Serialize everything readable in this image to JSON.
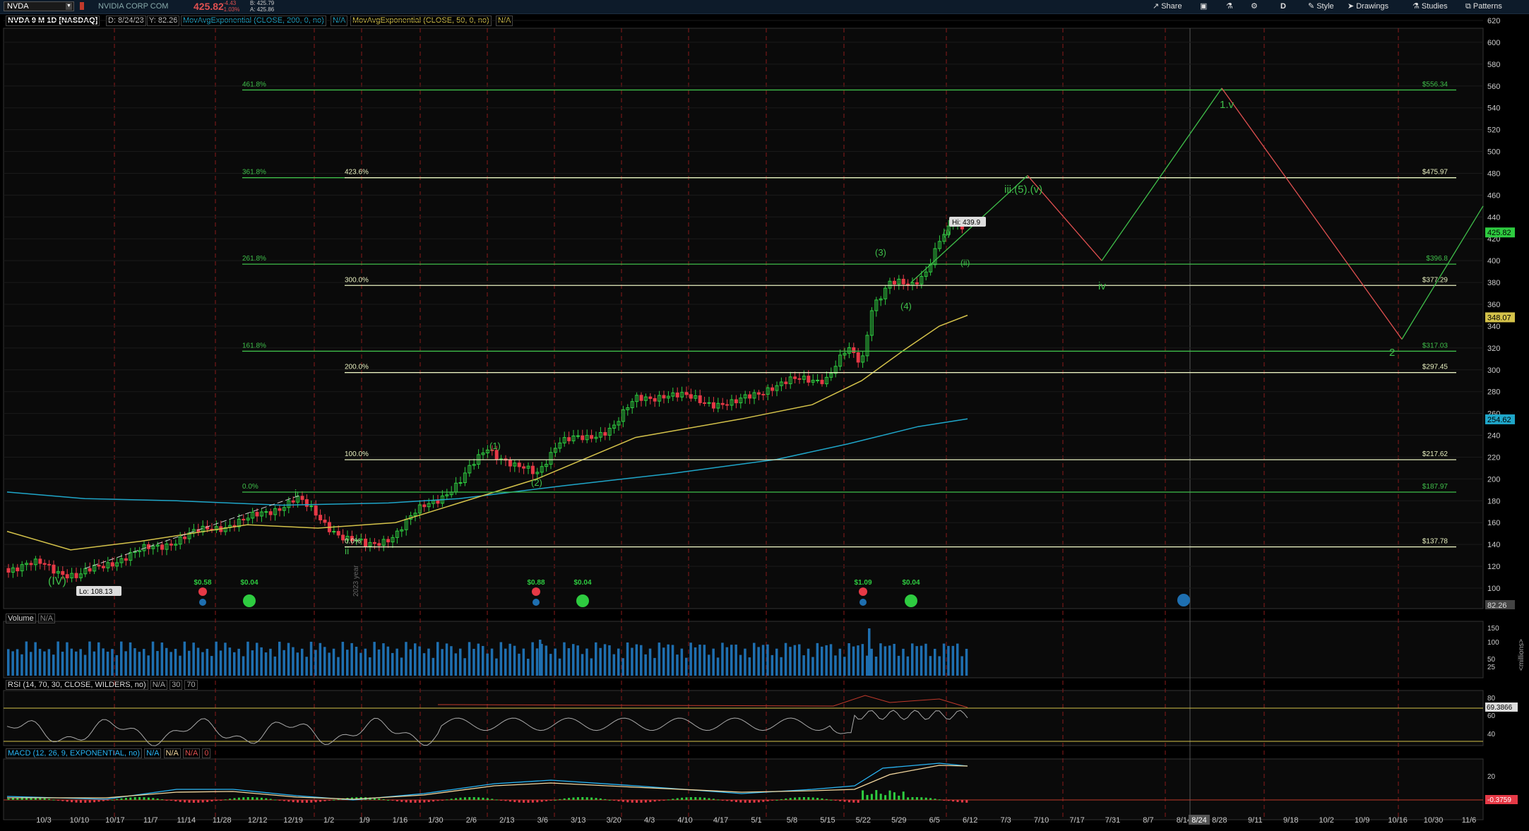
{
  "topbar": {
    "symbol": "NVDA",
    "company": "NVIDIA CORP COM",
    "last_price": "425.82",
    "change": "-4.43",
    "change_pct": "-1.03%",
    "bid": "B: 425.79",
    "ask": "A: 425.86",
    "share_label": "Share",
    "period_label": "D",
    "style_label": "Style",
    "drawings_label": "Drawings",
    "studies_label": "Studies",
    "patterns_label": "Patterns"
  },
  "infobar": {
    "chart_desc": "NVDA 9 M 1D [NASDAQ]",
    "date": "D: 8/24/23",
    "y_value": "Y: 82.26",
    "ma200_label": "MovAvgExponential (CLOSE, 200, 0, no)",
    "ma200_value": "N/A",
    "ma50_label": "MovAvgExponential (CLOSE, 50, 0, no)",
    "ma50_value": "N/A"
  },
  "colors": {
    "candle_up": "#2ecc40",
    "candle_down": "#e63946",
    "ma50": "#d4c24a",
    "ma200": "#1fa6c9",
    "fib_green": "#3fbf4a",
    "fib_white": "#e8f0c0",
    "wave_up": "#3fbf4a",
    "wave_down": "#e05050",
    "volume": "#1e6fb0",
    "rsi": "#aaaaaa",
    "macd_line": "#29b6f6",
    "macd_signal": "#f5d9a0"
  },
  "price_axis": {
    "ticks": [
      "620",
      "600",
      "580",
      "560",
      "540",
      "520",
      "500",
      "480",
      "460",
      "440",
      "420",
      "400",
      "380",
      "360",
      "340",
      "320",
      "300",
      "280",
      "260",
      "240",
      "220",
      "200",
      "180",
      "160",
      "140",
      "120",
      "100"
    ],
    "last_price_tag": "425.82",
    "ma50_tag": "348.07",
    "ma200_tag": "254.62",
    "cursor_y_tag": "82.26"
  },
  "date_axis": {
    "labels": [
      "10/3",
      "10/10",
      "10/17",
      "11/7",
      "11/14",
      "11/28",
      "12/12",
      "12/19",
      "1/2",
      "1/9",
      "1/16",
      "1/30",
      "2/6",
      "2/13",
      "3/6",
      "3/13",
      "3/20",
      "4/3",
      "4/10",
      "4/17",
      "5/1",
      "5/8",
      "5/15",
      "5/22",
      "5/29",
      "6/5",
      "6/12",
      "7/3",
      "7/10",
      "7/17",
      "7/31",
      "8/7",
      "8/14",
      "8/28",
      "9/11",
      "9/18",
      "10/2",
      "10/9",
      "10/16",
      "10/30",
      "11/6"
    ],
    "cursor_date": "8/24"
  },
  "fib_levels": [
    {
      "pct": "461.8%",
      "price_label": "$556.34",
      "price": 556.34,
      "kind": "green"
    },
    {
      "pct": "361.8%",
      "price_label": "",
      "price": 475.97,
      "kind": "green"
    },
    {
      "pct": "423.6%",
      "price_label": "$475.97",
      "price": 475.97,
      "kind": "white"
    },
    {
      "pct": "261.8%",
      "price_label": "$396.8",
      "price": 396.8,
      "kind": "green"
    },
    {
      "pct": "300.0%",
      "price_label": "$377.29",
      "price": 377.29,
      "kind": "white"
    },
    {
      "pct": "161.8%",
      "price_label": "$317.03",
      "price": 317.03,
      "kind": "green"
    },
    {
      "pct": "200.0%",
      "price_label": "$297.45",
      "price": 297.45,
      "kind": "white"
    },
    {
      "pct": "100.0%",
      "price_label": "$217.62",
      "price": 217.62,
      "kind": "white"
    },
    {
      "pct": "0.0%",
      "price_label": "$187.97",
      "price": 187.97,
      "kind": "green"
    },
    {
      "pct": "0.0%",
      "price_label": "$137.78",
      "price": 137.78,
      "kind": "white"
    }
  ],
  "annotations": {
    "hi_label": "Hi: 439.9",
    "lo_label": "Lo: 108.13",
    "wave_IV": "(IV)",
    "wave_i": "i",
    "wave_ii": "ii",
    "wave_1": "(1)",
    "wave_2": "(2)",
    "wave_3": "(3)",
    "wave_4": "(4)",
    "wave_i_small": "(i)",
    "wave_ii_small": "(ii)",
    "wave_iii5v": "iii.(5).(v)",
    "wave_iv": "iv",
    "wave_1v": "1.v",
    "wave_2_future": "2",
    "year_label": "2023 year"
  },
  "events": [
    {
      "label": "$0.58",
      "kind": "earn"
    },
    {
      "label": "$0.04",
      "kind": "div"
    },
    {
      "label": "$0.88",
      "kind": "earn"
    },
    {
      "label": "$0.04",
      "kind": "div"
    },
    {
      "label": "$1.09",
      "kind": "earn"
    },
    {
      "label": "$0.04",
      "kind": "div"
    }
  ],
  "volume_panel": {
    "label": "Volume",
    "value": "N/A",
    "ticks": [
      "150",
      "100",
      "50",
      "25"
    ],
    "unit": "<millions>"
  },
  "rsi_panel": {
    "label": "RSI (14, 70, 30, CLOSE, WILDERS, no)",
    "value": "N/A",
    "ob": "30",
    "os": "70",
    "ticks": [
      "80",
      "60",
      "40"
    ],
    "value_tag": "69.3866"
  },
  "macd_panel": {
    "label": "MACD (12, 26, 9, EXPONENTIAL, no)",
    "v1": "N/A",
    "v2": "N/A",
    "v3": "N/A",
    "v4": "0",
    "ticks": [
      "20"
    ],
    "value_tag": "-0.3759"
  }
}
